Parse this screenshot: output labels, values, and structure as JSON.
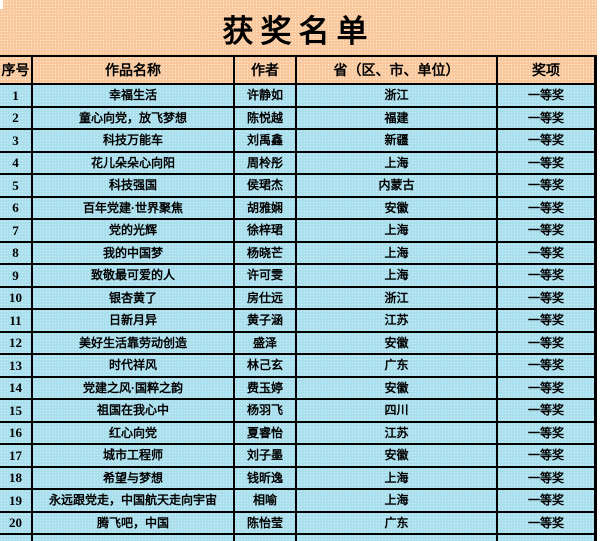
{
  "title": "获奖名单",
  "colors": {
    "peach": "#f9c89c",
    "blue": "#aadfee",
    "line": "#000000"
  },
  "columns": [
    {
      "key": "no",
      "label": "序号"
    },
    {
      "key": "work",
      "label": "作品名称"
    },
    {
      "key": "author",
      "label": "作者"
    },
    {
      "key": "province",
      "label": "省（区、市、单位）"
    },
    {
      "key": "award",
      "label": "奖项"
    }
  ],
  "rows": [
    {
      "no": "1",
      "work": "幸福生活",
      "author": "许静如",
      "province": "浙江",
      "award": "一等奖"
    },
    {
      "no": "2",
      "work": "童心向党，放飞梦想",
      "author": "陈悦越",
      "province": "福建",
      "award": "一等奖"
    },
    {
      "no": "3",
      "work": "科技万能车",
      "author": "刘禹鑫",
      "province": "新疆",
      "award": "一等奖"
    },
    {
      "no": "4",
      "work": "花儿朵朵心向阳",
      "author": "周柃彤",
      "province": "上海",
      "award": "一等奖"
    },
    {
      "no": "5",
      "work": "科技强国",
      "author": "侯珺杰",
      "province": "内蒙古",
      "award": "一等奖"
    },
    {
      "no": "6",
      "work": "百年党建·世界聚焦",
      "author": "胡雅娴",
      "province": "安徽",
      "award": "一等奖"
    },
    {
      "no": "7",
      "work": "党的光辉",
      "author": "徐梓珺",
      "province": "上海",
      "award": "一等奖"
    },
    {
      "no": "8",
      "work": "我的中国梦",
      "author": "杨晓芒",
      "province": "上海",
      "award": "一等奖"
    },
    {
      "no": "9",
      "work": "致敬最可爱的人",
      "author": "许可雯",
      "province": "上海",
      "award": "一等奖"
    },
    {
      "no": "10",
      "work": "银杏黄了",
      "author": "房仕远",
      "province": "浙江",
      "award": "一等奖"
    },
    {
      "no": "11",
      "work": "日新月异",
      "author": "黄子涵",
      "province": "江苏",
      "award": "一等奖"
    },
    {
      "no": "12",
      "work": "美好生活靠劳动创造",
      "author": "盛泽",
      "province": "安徽",
      "award": "一等奖"
    },
    {
      "no": "13",
      "work": "时代祥风",
      "author": "林己玄",
      "province": "广东",
      "award": "一等奖"
    },
    {
      "no": "14",
      "work": "党建之风·国粹之韵",
      "author": "费玉婷",
      "province": "安徽",
      "award": "一等奖"
    },
    {
      "no": "15",
      "work": "祖国在我心中",
      "author": "杨羽飞",
      "province": "四川",
      "award": "一等奖"
    },
    {
      "no": "16",
      "work": "红心向党",
      "author": "夏睿怡",
      "province": "江苏",
      "award": "一等奖"
    },
    {
      "no": "17",
      "work": "城市工程师",
      "author": "刘子墨",
      "province": "安徽",
      "award": "一等奖"
    },
    {
      "no": "18",
      "work": "希望与梦想",
      "author": "钱昕逸",
      "province": "上海",
      "award": "一等奖"
    },
    {
      "no": "19",
      "work": "永远跟党走，中国航天走向宇宙",
      "author": "相喻",
      "province": "上海",
      "award": "一等奖"
    },
    {
      "no": "20",
      "work": "腾飞吧，中国",
      "author": "陈怡莹",
      "province": "广东",
      "award": "一等奖"
    }
  ]
}
